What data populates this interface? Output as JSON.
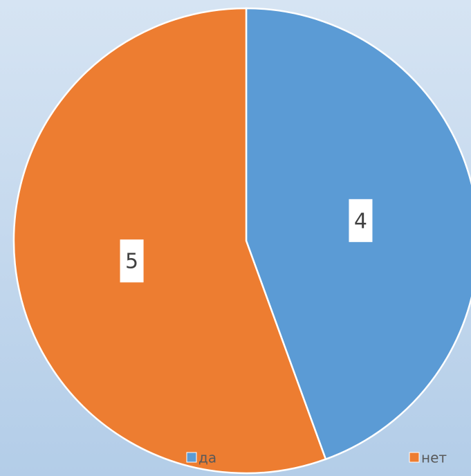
{
  "chart_data": {
    "type": "pie",
    "categories": [
      "да",
      "нет"
    ],
    "values": [
      4,
      5
    ],
    "colors": [
      "#5b9bd5",
      "#ed7d31"
    ],
    "legend": "bottom"
  }
}
